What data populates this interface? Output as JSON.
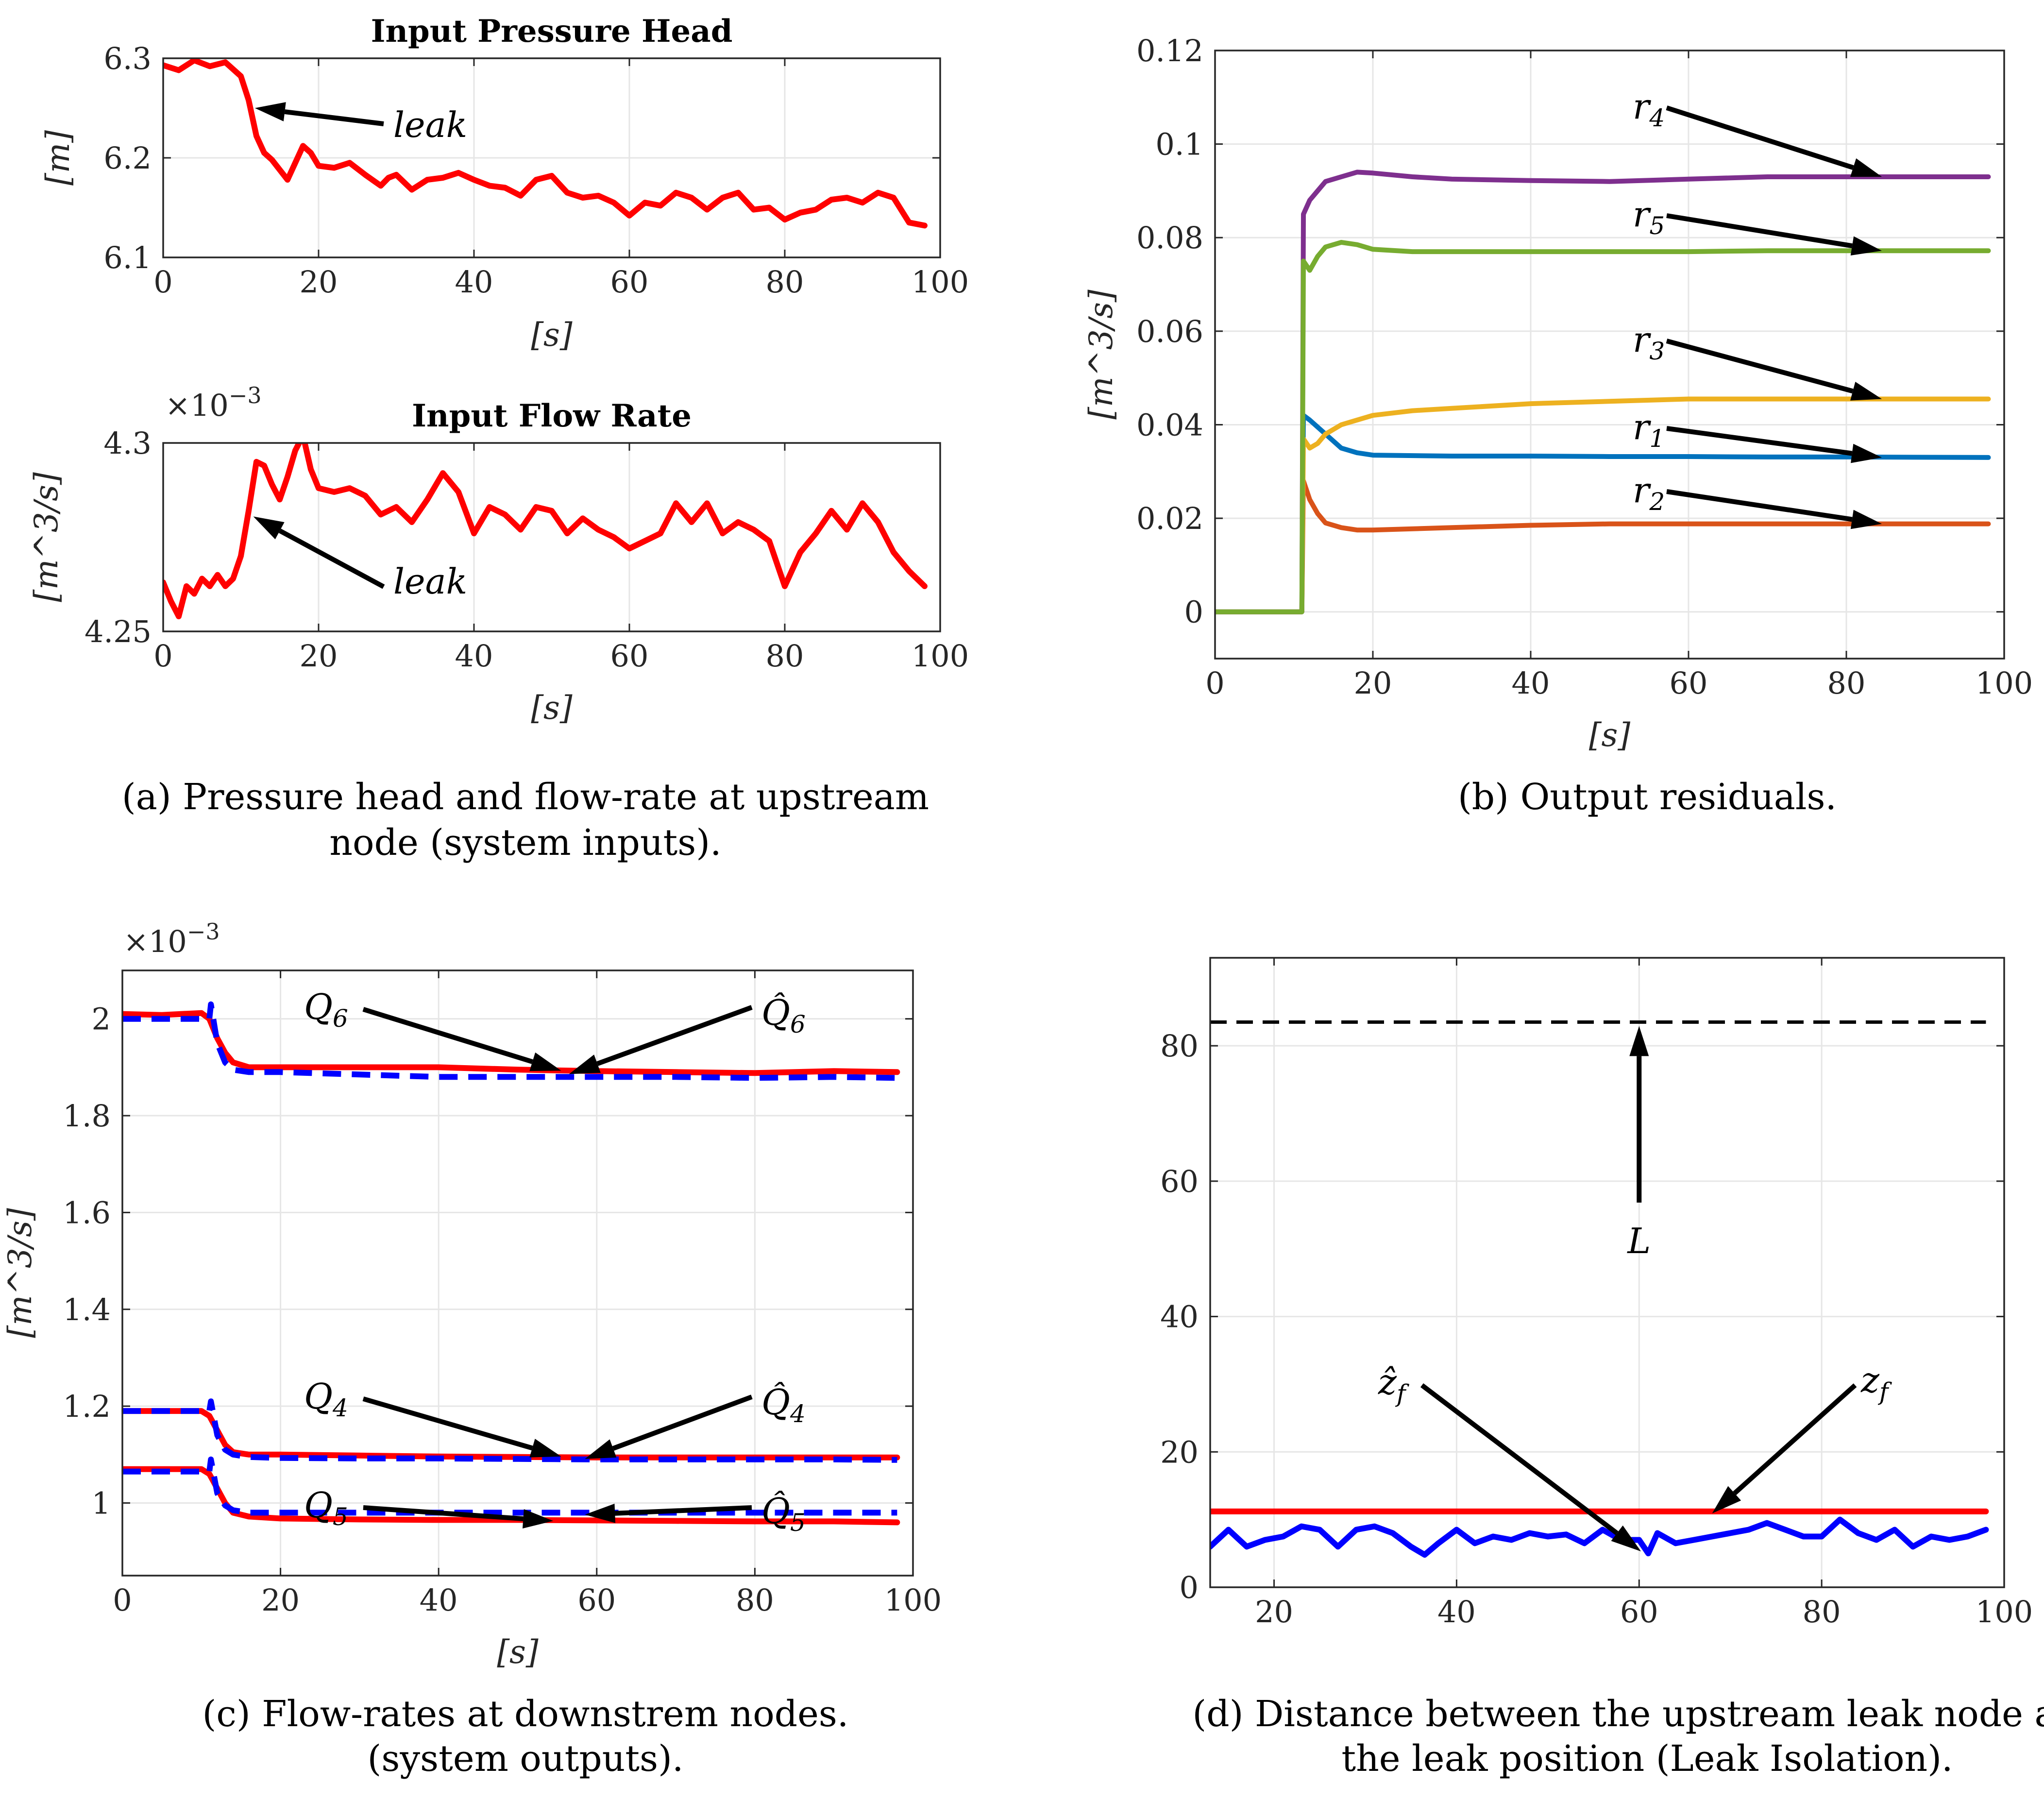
{
  "chart_data": [
    {
      "id": "a1",
      "type": "line",
      "title": "Input Pressure Head",
      "xlabel": "[s]",
      "ylabel": "[m]",
      "xlim": [
        0,
        100
      ],
      "ylim": [
        6.1,
        6.3
      ],
      "xticks": [
        "0",
        "20",
        "40",
        "60",
        "80",
        "100"
      ],
      "yticks": [
        "6.1",
        "6.2",
        "6.3"
      ],
      "grid": true,
      "series": [
        {
          "name": "Input Pressure Head",
          "color": "#ff0000",
          "x": [
            0,
            2,
            4,
            6,
            8,
            10,
            11,
            12,
            13,
            14,
            15,
            16,
            17,
            18,
            19,
            20,
            22,
            24,
            26,
            28,
            29,
            30,
            32,
            34,
            36,
            38,
            40,
            42,
            44,
            46,
            48,
            50,
            52,
            54,
            56,
            58,
            60,
            62,
            64,
            66,
            68,
            70,
            72,
            74,
            76,
            78,
            80,
            82,
            84,
            86,
            88,
            90,
            92,
            94,
            96,
            98
          ],
          "y": [
            6.293,
            6.288,
            6.298,
            6.292,
            6.296,
            6.282,
            6.258,
            6.222,
            6.205,
            6.198,
            6.188,
            6.178,
            6.195,
            6.212,
            6.205,
            6.192,
            6.19,
            6.195,
            6.183,
            6.172,
            6.18,
            6.183,
            6.168,
            6.178,
            6.18,
            6.185,
            6.178,
            6.172,
            6.17,
            6.162,
            6.178,
            6.182,
            6.165,
            6.16,
            6.162,
            6.155,
            6.142,
            6.155,
            6.152,
            6.165,
            6.16,
            6.148,
            6.16,
            6.165,
            6.148,
            6.15,
            6.138,
            6.145,
            6.148,
            6.158,
            6.16,
            6.155,
            6.165,
            6.16,
            6.135,
            6.132
          ]
        }
      ],
      "annotations": [
        {
          "text": "leak"
        }
      ]
    },
    {
      "id": "a2",
      "type": "line",
      "title": "Input Flow Rate",
      "xlabel": "[s]",
      "ylabel": "[m^3/s]",
      "exponent": "×10",
      "exponent_power": "−3",
      "xlim": [
        0,
        100
      ],
      "ylim": [
        4.25,
        4.3
      ],
      "xticks": [
        "0",
        "20",
        "40",
        "60",
        "80",
        "100"
      ],
      "yticks": [
        "4.25",
        "4.3"
      ],
      "grid": true,
      "series": [
        {
          "name": "Input Flow Rate",
          "color": "#ff0000",
          "x": [
            0,
            1,
            2,
            3,
            4,
            5,
            6,
            7,
            8,
            9,
            10,
            11,
            12,
            13,
            14,
            15,
            16,
            17,
            18,
            19,
            20,
            22,
            24,
            26,
            28,
            30,
            32,
            34,
            36,
            38,
            40,
            42,
            44,
            46,
            48,
            50,
            52,
            54,
            56,
            58,
            60,
            62,
            64,
            66,
            68,
            70,
            72,
            74,
            76,
            78,
            80,
            82,
            84,
            86,
            88,
            90,
            92,
            94,
            96,
            98
          ],
          "y": [
            4.263,
            4.258,
            4.254,
            4.262,
            4.26,
            4.264,
            4.262,
            4.265,
            4.262,
            4.264,
            4.27,
            4.282,
            4.295,
            4.294,
            4.289,
            4.285,
            4.291,
            4.298,
            4.302,
            4.293,
            4.288,
            4.287,
            4.288,
            4.286,
            4.281,
            4.283,
            4.279,
            4.285,
            4.292,
            4.287,
            4.276,
            4.283,
            4.281,
            4.277,
            4.283,
            4.282,
            4.276,
            4.28,
            4.277,
            4.275,
            4.272,
            4.274,
            4.276,
            4.284,
            4.279,
            4.284,
            4.276,
            4.279,
            4.277,
            4.274,
            4.262,
            4.271,
            4.276,
            4.282,
            4.277,
            4.284,
            4.279,
            4.271,
            4.266,
            4.262
          ]
        }
      ],
      "annotations": [
        {
          "text": "leak"
        }
      ]
    },
    {
      "id": "b",
      "type": "line",
      "title": "",
      "xlabel": "[s]",
      "ylabel": "[m^3/s]",
      "xlim": [
        0,
        100
      ],
      "ylim": [
        -0.01,
        0.12
      ],
      "xticks": [
        "0",
        "20",
        "40",
        "60",
        "80",
        "100"
      ],
      "yticks": [
        "0",
        "0.02",
        "0.04",
        "0.06",
        "0.08",
        "0.1",
        "0.12"
      ],
      "grid": true,
      "series": [
        {
          "name": "r1",
          "color": "#0072bd",
          "x": [
            0,
            11,
            11.2,
            12,
            14,
            16,
            18,
            20,
            30,
            40,
            50,
            60,
            70,
            80,
            98
          ],
          "y": [
            0,
            0,
            0.042,
            0.041,
            0.038,
            0.035,
            0.034,
            0.0335,
            0.0333,
            0.0333,
            0.0332,
            0.0332,
            0.0331,
            0.0331,
            0.033
          ]
        },
        {
          "name": "r2",
          "color": "#d95319",
          "x": [
            0,
            11,
            11.2,
            12,
            13,
            14,
            16,
            18,
            20,
            30,
            40,
            50,
            60,
            70,
            80,
            98
          ],
          "y": [
            0,
            0,
            0.028,
            0.024,
            0.021,
            0.019,
            0.018,
            0.0175,
            0.0175,
            0.018,
            0.0185,
            0.0188,
            0.0188,
            0.0188,
            0.0188,
            0.0188
          ]
        },
        {
          "name": "r3",
          "color": "#edb120",
          "x": [
            0,
            11,
            11.2,
            12,
            13,
            14,
            16,
            18,
            20,
            25,
            30,
            40,
            50,
            60,
            70,
            80,
            98
          ],
          "y": [
            0,
            0,
            0.037,
            0.035,
            0.036,
            0.038,
            0.04,
            0.041,
            0.042,
            0.043,
            0.0435,
            0.0445,
            0.045,
            0.0455,
            0.0455,
            0.0455,
            0.0455
          ]
        },
        {
          "name": "r4",
          "color": "#7e2f8e",
          "x": [
            0,
            11,
            11.2,
            12,
            13,
            14,
            16,
            18,
            20,
            25,
            30,
            40,
            50,
            60,
            70,
            80,
            98
          ],
          "y": [
            0,
            0,
            0.085,
            0.088,
            0.09,
            0.092,
            0.093,
            0.094,
            0.0938,
            0.093,
            0.0925,
            0.0922,
            0.092,
            0.0925,
            0.093,
            0.093,
            0.093
          ]
        },
        {
          "name": "r5",
          "color": "#77ac30",
          "x": [
            0,
            11,
            11.2,
            12,
            13,
            14,
            16,
            18,
            20,
            25,
            30,
            40,
            50,
            60,
            70,
            80,
            98
          ],
          "y": [
            0,
            0,
            0.075,
            0.073,
            0.076,
            0.078,
            0.079,
            0.0785,
            0.0775,
            0.077,
            0.077,
            0.077,
            0.077,
            0.077,
            0.0772,
            0.0772,
            0.0772
          ]
        }
      ],
      "annotations": [
        {
          "text": "r",
          "sub": "4"
        },
        {
          "text": "r",
          "sub": "5"
        },
        {
          "text": "r",
          "sub": "3"
        },
        {
          "text": "r",
          "sub": "1"
        },
        {
          "text": "r",
          "sub": "2"
        }
      ]
    },
    {
      "id": "c",
      "type": "line",
      "title": "",
      "xlabel": "[s]",
      "ylabel": "[m^3/s]",
      "exponent": "×10",
      "exponent_power": "−3",
      "xlim": [
        0,
        100
      ],
      "ylim": [
        0.85,
        2.1
      ],
      "xticks": [
        "0",
        "20",
        "40",
        "60",
        "80",
        "100"
      ],
      "yticks": [
        "1",
        "1.2",
        "1.4",
        "1.6",
        "1.8",
        "2"
      ],
      "grid": true,
      "series": [
        {
          "name": "Q6",
          "color": "#ff0000",
          "dash": false,
          "x": [
            0,
            5,
            10,
            11,
            12,
            13,
            14,
            16,
            20,
            30,
            40,
            50,
            60,
            70,
            80,
            90,
            98
          ],
          "y": [
            2.01,
            2.008,
            2.012,
            2.0,
            1.96,
            1.93,
            1.91,
            1.9,
            1.9,
            1.9,
            1.9,
            1.895,
            1.892,
            1.89,
            1.888,
            1.892,
            1.89
          ]
        },
        {
          "name": "Q6 hat",
          "color": "#0000ff",
          "dash": true,
          "x": [
            0,
            10,
            11,
            11.2,
            12,
            13,
            14,
            16,
            20,
            30,
            40,
            50,
            60,
            70,
            80,
            90,
            98
          ],
          "y": [
            2.0,
            2.0,
            2.0,
            2.03,
            1.95,
            1.91,
            1.895,
            1.89,
            1.89,
            1.885,
            1.88,
            1.88,
            1.88,
            1.88,
            1.878,
            1.88,
            1.878
          ]
        },
        {
          "name": "Q4",
          "color": "#ff0000",
          "dash": false,
          "x": [
            0,
            5,
            10,
            11,
            12,
            13,
            14,
            16,
            20,
            30,
            40,
            50,
            60,
            70,
            80,
            90,
            98
          ],
          "y": [
            1.19,
            1.19,
            1.19,
            1.18,
            1.15,
            1.12,
            1.105,
            1.1,
            1.1,
            1.098,
            1.096,
            1.095,
            1.094,
            1.094,
            1.094,
            1.094,
            1.094
          ]
        },
        {
          "name": "Q4 hat",
          "color": "#0000ff",
          "dash": true,
          "x": [
            0,
            10,
            11,
            11.2,
            12,
            13,
            14,
            16,
            20,
            30,
            40,
            50,
            60,
            70,
            80,
            90,
            98
          ],
          "y": [
            1.19,
            1.19,
            1.19,
            1.21,
            1.14,
            1.11,
            1.1,
            1.095,
            1.093,
            1.092,
            1.092,
            1.091,
            1.09,
            1.09,
            1.09,
            1.09,
            1.089
          ]
        },
        {
          "name": "Q5",
          "color": "#ff0000",
          "dash": false,
          "x": [
            0,
            5,
            10,
            11,
            12,
            13,
            14,
            16,
            20,
            30,
            40,
            50,
            60,
            70,
            80,
            90,
            98
          ],
          "y": [
            1.07,
            1.07,
            1.07,
            1.06,
            1.03,
            1.0,
            0.98,
            0.972,
            0.968,
            0.966,
            0.965,
            0.965,
            0.964,
            0.963,
            0.962,
            0.962,
            0.96
          ]
        },
        {
          "name": "Q5 hat",
          "color": "#0000ff",
          "dash": true,
          "x": [
            0,
            10,
            11,
            11.2,
            12,
            13,
            14,
            16,
            20,
            30,
            40,
            50,
            60,
            70,
            80,
            90,
            98
          ],
          "y": [
            1.065,
            1.065,
            1.065,
            1.09,
            1.02,
            0.995,
            0.985,
            0.98,
            0.98,
            0.98,
            0.98,
            0.98,
            0.98,
            0.98,
            0.98,
            0.98,
            0.98
          ]
        }
      ],
      "annotations": [
        {
          "text": "Q",
          "sub": "6"
        },
        {
          "text": "Q̂",
          "sub": "6"
        },
        {
          "text": "Q",
          "sub": "4"
        },
        {
          "text": "Q̂",
          "sub": "4"
        },
        {
          "text": "Q",
          "sub": "5"
        },
        {
          "text": "Q̂",
          "sub": "5"
        }
      ]
    },
    {
      "id": "d",
      "type": "line",
      "title": "",
      "xlabel": "",
      "ylabel": "",
      "xlim": [
        13,
        100
      ],
      "ylim": [
        0,
        93
      ],
      "xticks": [
        "20",
        "40",
        "60",
        "80",
        "100"
      ],
      "yticks": [
        "0",
        "20",
        "40",
        "60",
        "80"
      ],
      "grid": true,
      "series": [
        {
          "name": "L",
          "color": "#000000",
          "dash": true,
          "x": [
            13,
            98
          ],
          "y": [
            83.5,
            83.5
          ]
        },
        {
          "name": "z_f",
          "color": "#ff0000",
          "dash": false,
          "x": [
            13,
            98
          ],
          "y": [
            11.2,
            11.2
          ]
        },
        {
          "name": "z_f hat",
          "color": "#0000ff",
          "dash": false,
          "x": [
            13,
            15,
            17,
            19,
            21,
            23,
            25,
            27,
            29,
            31,
            33,
            35,
            36.5,
            38,
            40,
            42,
            44,
            46,
            48,
            50,
            52,
            54,
            56,
            58,
            60,
            61,
            62,
            64,
            66,
            68,
            70,
            72,
            74,
            76,
            78,
            80,
            82,
            84,
            86,
            88,
            90,
            92,
            94,
            96,
            98
          ],
          "y": [
            6.0,
            8.5,
            6.0,
            7.0,
            7.5,
            9.0,
            8.5,
            6.0,
            8.5,
            9.0,
            8.0,
            6.0,
            4.8,
            6.5,
            8.5,
            6.5,
            7.5,
            7.0,
            8.0,
            7.5,
            7.8,
            6.5,
            8.5,
            7.0,
            7.0,
            5.0,
            8.0,
            6.5,
            7.0,
            7.5,
            8.0,
            8.5,
            9.5,
            8.5,
            7.5,
            7.5,
            10.0,
            8.0,
            7.0,
            8.5,
            6.0,
            7.5,
            7.0,
            7.5,
            8.5
          ]
        }
      ],
      "annotations": [
        {
          "text": "L"
        },
        {
          "text": "ẑ",
          "sub": "f"
        },
        {
          "text": "z",
          "sub": "f"
        }
      ]
    }
  ],
  "captions": {
    "a_line1": "(a) Pressure head and flow-rate at upstream",
    "a_line2": "node (system inputs).",
    "b": "(b) Output residuals.",
    "c_line1": "(c) Flow-rates at downstrem nodes.",
    "c_line2": "(system outputs).",
    "d_line1": "(d) Distance between the upstream leak node and",
    "d_line2": "the leak position (Leak Isolation)."
  },
  "colors": {
    "axis": "#262626",
    "grid": "#e6e6e6",
    "red": "#ff0000",
    "blue": "#0000ff",
    "black": "#000000"
  }
}
